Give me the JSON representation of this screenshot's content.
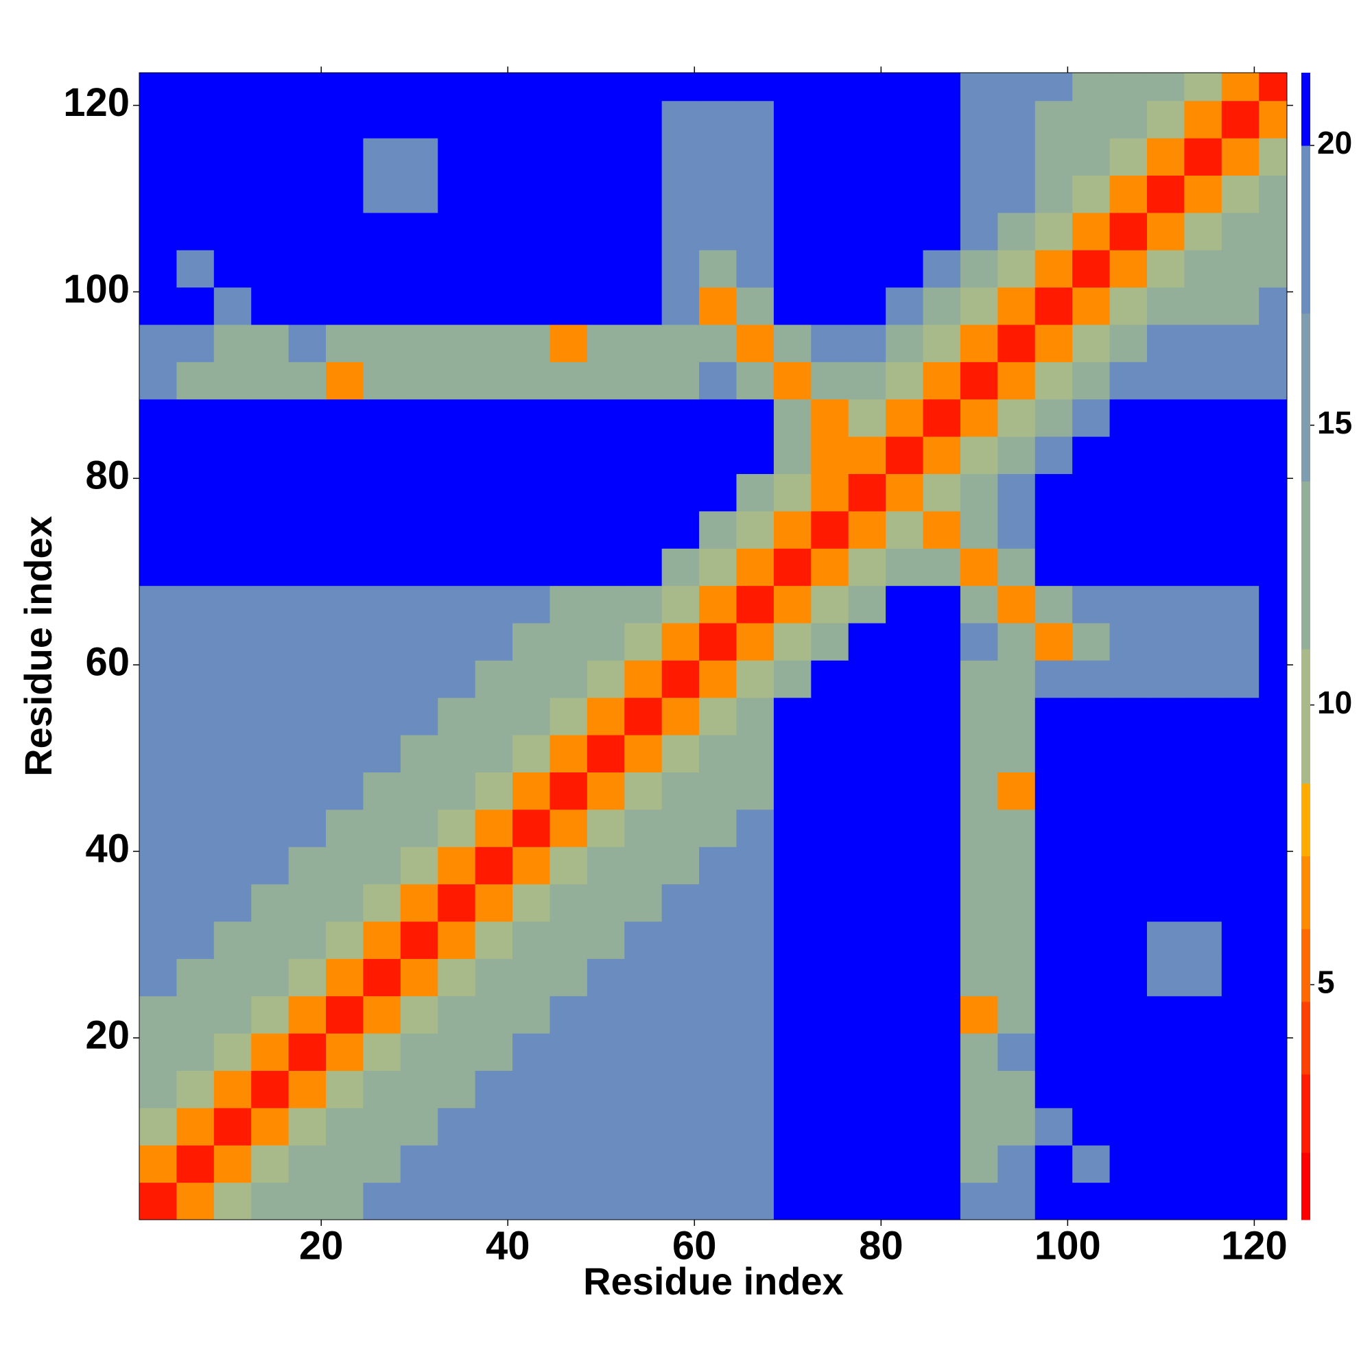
{
  "chart_data": {
    "type": "heatmap",
    "xlabel": "Residue index",
    "ylabel": "Residue index",
    "x": [
      2.5,
      6.5,
      10.5,
      14.5,
      18.5,
      22.5,
      26.5,
      30.5,
      34.5,
      38.5,
      42.5,
      46.5,
      50.5,
      54.5,
      58.5,
      62.5,
      66.5,
      70.5,
      74.5,
      78.5,
      82.5,
      86.5,
      90.5,
      94.5,
      98.5,
      102.5,
      106.5,
      110.5,
      114.5,
      118.5,
      122.5
    ],
    "y": [
      2.5,
      6.5,
      10.5,
      14.5,
      18.5,
      22.5,
      26.5,
      30.5,
      34.5,
      38.5,
      42.5,
      46.5,
      50.5,
      54.5,
      58.5,
      62.5,
      66.5,
      70.5,
      74.5,
      78.5,
      82.5,
      86.5,
      90.5,
      94.5,
      98.5,
      102.5,
      106.5,
      110.5,
      114.5,
      118.5,
      122.5
    ],
    "xlim": [
      0.5,
      123.5
    ],
    "ylim": [
      0.5,
      123.5
    ],
    "xticks": [
      20,
      40,
      60,
      80,
      100,
      120
    ],
    "yticks": [
      20,
      40,
      60,
      80,
      100,
      120
    ],
    "levels": [
      0.8,
      2,
      3.4,
      4.7,
      6,
      7.3,
      8.6,
      11,
      14,
      17,
      20,
      21.3
    ],
    "colors": [
      "#ff0000",
      "#ff1a00",
      "#ff4000",
      "#ff6a00",
      "#ff8c00",
      "#ffab00",
      "#a9ba8a",
      "#93ae99",
      "#7f9db0",
      "#6a8cbf",
      "#0000ff"
    ],
    "zticks": [
      5,
      10,
      15,
      20
    ],
    "z": [
      [
        3,
        7,
        10,
        13,
        13,
        13,
        17,
        17,
        17,
        17,
        17,
        17,
        17,
        17,
        17,
        17,
        17,
        21,
        21,
        21,
        21,
        21,
        17,
        17,
        21,
        21,
        21,
        21,
        21,
        21,
        21
      ],
      [
        7,
        3,
        7,
        10,
        13,
        13,
        13,
        17,
        17,
        17,
        17,
        17,
        17,
        17,
        17,
        17,
        17,
        21,
        21,
        21,
        21,
        21,
        13,
        17,
        21,
        17,
        21,
        21,
        21,
        21,
        21
      ],
      [
        10,
        7,
        3,
        7,
        10,
        13,
        13,
        13,
        17,
        17,
        17,
        17,
        17,
        17,
        17,
        17,
        17,
        21,
        21,
        21,
        21,
        21,
        13,
        13,
        17,
        21,
        21,
        21,
        21,
        21,
        21
      ],
      [
        13,
        10,
        7,
        3,
        7,
        10,
        13,
        13,
        13,
        17,
        17,
        17,
        17,
        17,
        17,
        17,
        17,
        21,
        21,
        21,
        21,
        21,
        13,
        13,
        21,
        21,
        21,
        21,
        21,
        21,
        21
      ],
      [
        13,
        13,
        10,
        7,
        3,
        7,
        10,
        13,
        13,
        13,
        17,
        17,
        17,
        17,
        17,
        17,
        17,
        21,
        21,
        21,
        21,
        21,
        13,
        17,
        21,
        21,
        21,
        21,
        21,
        21,
        21
      ],
      [
        13,
        13,
        13,
        10,
        7,
        3,
        7,
        10,
        13,
        13,
        13,
        17,
        17,
        17,
        17,
        17,
        17,
        21,
        21,
        21,
        21,
        21,
        7,
        13,
        21,
        21,
        21,
        21,
        21,
        21,
        21
      ],
      [
        17,
        13,
        13,
        13,
        10,
        7,
        3,
        7,
        10,
        13,
        13,
        13,
        17,
        17,
        17,
        17,
        17,
        21,
        21,
        21,
        21,
        21,
        13,
        13,
        21,
        21,
        21,
        17,
        17,
        21,
        21
      ],
      [
        17,
        17,
        13,
        13,
        13,
        10,
        7,
        3,
        7,
        10,
        13,
        13,
        13,
        17,
        17,
        17,
        17,
        21,
        21,
        21,
        21,
        21,
        13,
        13,
        21,
        21,
        21,
        17,
        17,
        21,
        21
      ],
      [
        17,
        17,
        17,
        13,
        13,
        13,
        10,
        7,
        3,
        7,
        10,
        13,
        13,
        13,
        17,
        17,
        17,
        21,
        21,
        21,
        21,
        21,
        13,
        13,
        21,
        21,
        21,
        21,
        21,
        21,
        21
      ],
      [
        17,
        17,
        17,
        17,
        13,
        13,
        13,
        10,
        7,
        3,
        7,
        10,
        13,
        13,
        13,
        17,
        17,
        21,
        21,
        21,
        21,
        21,
        13,
        13,
        21,
        21,
        21,
        21,
        21,
        21,
        21
      ],
      [
        17,
        17,
        17,
        17,
        17,
        13,
        13,
        13,
        10,
        7,
        3,
        7,
        10,
        13,
        13,
        13,
        17,
        21,
        21,
        21,
        21,
        21,
        13,
        13,
        21,
        21,
        21,
        21,
        21,
        21,
        21
      ],
      [
        17,
        17,
        17,
        17,
        17,
        17,
        13,
        13,
        13,
        10,
        7,
        3,
        7,
        10,
        13,
        13,
        13,
        21,
        21,
        21,
        21,
        21,
        13,
        7,
        21,
        21,
        21,
        21,
        21,
        21,
        21
      ],
      [
        17,
        17,
        17,
        17,
        17,
        17,
        17,
        13,
        13,
        13,
        10,
        7,
        3,
        7,
        10,
        13,
        13,
        21,
        21,
        21,
        21,
        21,
        13,
        13,
        21,
        21,
        21,
        21,
        21,
        21,
        21
      ],
      [
        17,
        17,
        17,
        17,
        17,
        17,
        17,
        17,
        13,
        13,
        13,
        10,
        7,
        3,
        7,
        10,
        13,
        21,
        21,
        21,
        21,
        21,
        13,
        13,
        21,
        21,
        21,
        21,
        21,
        21,
        21
      ],
      [
        17,
        17,
        17,
        17,
        17,
        17,
        17,
        17,
        17,
        13,
        13,
        13,
        10,
        7,
        3,
        7,
        10,
        13,
        21,
        21,
        21,
        21,
        13,
        13,
        17,
        17,
        17,
        17,
        17,
        17,
        21
      ],
      [
        17,
        17,
        17,
        17,
        17,
        17,
        17,
        17,
        17,
        17,
        13,
        13,
        13,
        10,
        7,
        3,
        7,
        10,
        13,
        21,
        21,
        21,
        17,
        13,
        7,
        13,
        17,
        17,
        17,
        17,
        21
      ],
      [
        17,
        17,
        17,
        17,
        17,
        17,
        17,
        17,
        17,
        17,
        17,
        13,
        13,
        13,
        10,
        7,
        3,
        7,
        10,
        13,
        21,
        21,
        13,
        7,
        13,
        17,
        17,
        17,
        17,
        17,
        21
      ],
      [
        21,
        21,
        21,
        21,
        21,
        21,
        21,
        21,
        21,
        21,
        21,
        21,
        21,
        21,
        13,
        10,
        7,
        3,
        7,
        10,
        13,
        13,
        7,
        13,
        21,
        21,
        21,
        21,
        21,
        21,
        21
      ],
      [
        21,
        21,
        21,
        21,
        21,
        21,
        21,
        21,
        21,
        21,
        21,
        21,
        21,
        21,
        21,
        13,
        10,
        7,
        3,
        7,
        10,
        7,
        13,
        17,
        21,
        21,
        21,
        21,
        21,
        21,
        21
      ],
      [
        21,
        21,
        21,
        21,
        21,
        21,
        21,
        21,
        21,
        21,
        21,
        21,
        21,
        21,
        21,
        21,
        13,
        10,
        7,
        3,
        7,
        10,
        13,
        17,
        21,
        21,
        21,
        21,
        21,
        21,
        21
      ],
      [
        21,
        21,
        21,
        21,
        21,
        21,
        21,
        21,
        21,
        21,
        21,
        21,
        21,
        21,
        21,
        21,
        21,
        13,
        7,
        7,
        3,
        7,
        10,
        13,
        17,
        21,
        21,
        21,
        21,
        21,
        21
      ],
      [
        21,
        21,
        21,
        21,
        21,
        21,
        21,
        21,
        21,
        21,
        21,
        21,
        21,
        21,
        21,
        21,
        21,
        13,
        7,
        10,
        7,
        3,
        7,
        10,
        13,
        17,
        21,
        21,
        21,
        21,
        21
      ],
      [
        17,
        13,
        13,
        13,
        13,
        7,
        13,
        13,
        13,
        13,
        13,
        13,
        13,
        13,
        13,
        17,
        13,
        7,
        13,
        13,
        10,
        7,
        3,
        7,
        10,
        13,
        17,
        17,
        17,
        17,
        17
      ],
      [
        17,
        17,
        13,
        13,
        17,
        13,
        13,
        13,
        13,
        13,
        13,
        7,
        13,
        13,
        13,
        13,
        7,
        13,
        17,
        17,
        13,
        10,
        7,
        3,
        7,
        10,
        13,
        17,
        17,
        17,
        17
      ],
      [
        21,
        21,
        17,
        21,
        21,
        21,
        21,
        21,
        21,
        21,
        21,
        21,
        21,
        21,
        17,
        7,
        13,
        21,
        21,
        21,
        17,
        13,
        10,
        7,
        3,
        7,
        10,
        13,
        13,
        13,
        17
      ],
      [
        21,
        17,
        21,
        21,
        21,
        21,
        21,
        21,
        21,
        21,
        21,
        21,
        21,
        21,
        17,
        13,
        17,
        21,
        21,
        21,
        21,
        17,
        13,
        10,
        7,
        3,
        7,
        10,
        13,
        13,
        13
      ],
      [
        21,
        21,
        21,
        21,
        21,
        21,
        21,
        21,
        21,
        21,
        21,
        21,
        21,
        21,
        17,
        17,
        17,
        21,
        21,
        21,
        21,
        21,
        17,
        13,
        10,
        7,
        3,
        7,
        10,
        13,
        13
      ],
      [
        21,
        21,
        21,
        21,
        21,
        21,
        17,
        17,
        21,
        21,
        21,
        21,
        21,
        21,
        17,
        17,
        17,
        21,
        21,
        21,
        21,
        21,
        17,
        17,
        13,
        10,
        7,
        3,
        7,
        10,
        13
      ],
      [
        21,
        21,
        21,
        21,
        21,
        21,
        17,
        17,
        21,
        21,
        21,
        21,
        21,
        21,
        17,
        17,
        17,
        21,
        21,
        21,
        21,
        21,
        17,
        17,
        13,
        13,
        10,
        7,
        3,
        7,
        10
      ],
      [
        21,
        21,
        21,
        21,
        21,
        21,
        21,
        21,
        21,
        21,
        21,
        21,
        21,
        21,
        17,
        17,
        17,
        21,
        21,
        21,
        21,
        21,
        17,
        17,
        13,
        13,
        13,
        10,
        7,
        3,
        7
      ],
      [
        21,
        21,
        21,
        21,
        21,
        21,
        21,
        21,
        21,
        21,
        21,
        21,
        21,
        21,
        21,
        21,
        21,
        21,
        21,
        21,
        21,
        21,
        17,
        17,
        17,
        13,
        13,
        13,
        10,
        7,
        3
      ]
    ]
  }
}
